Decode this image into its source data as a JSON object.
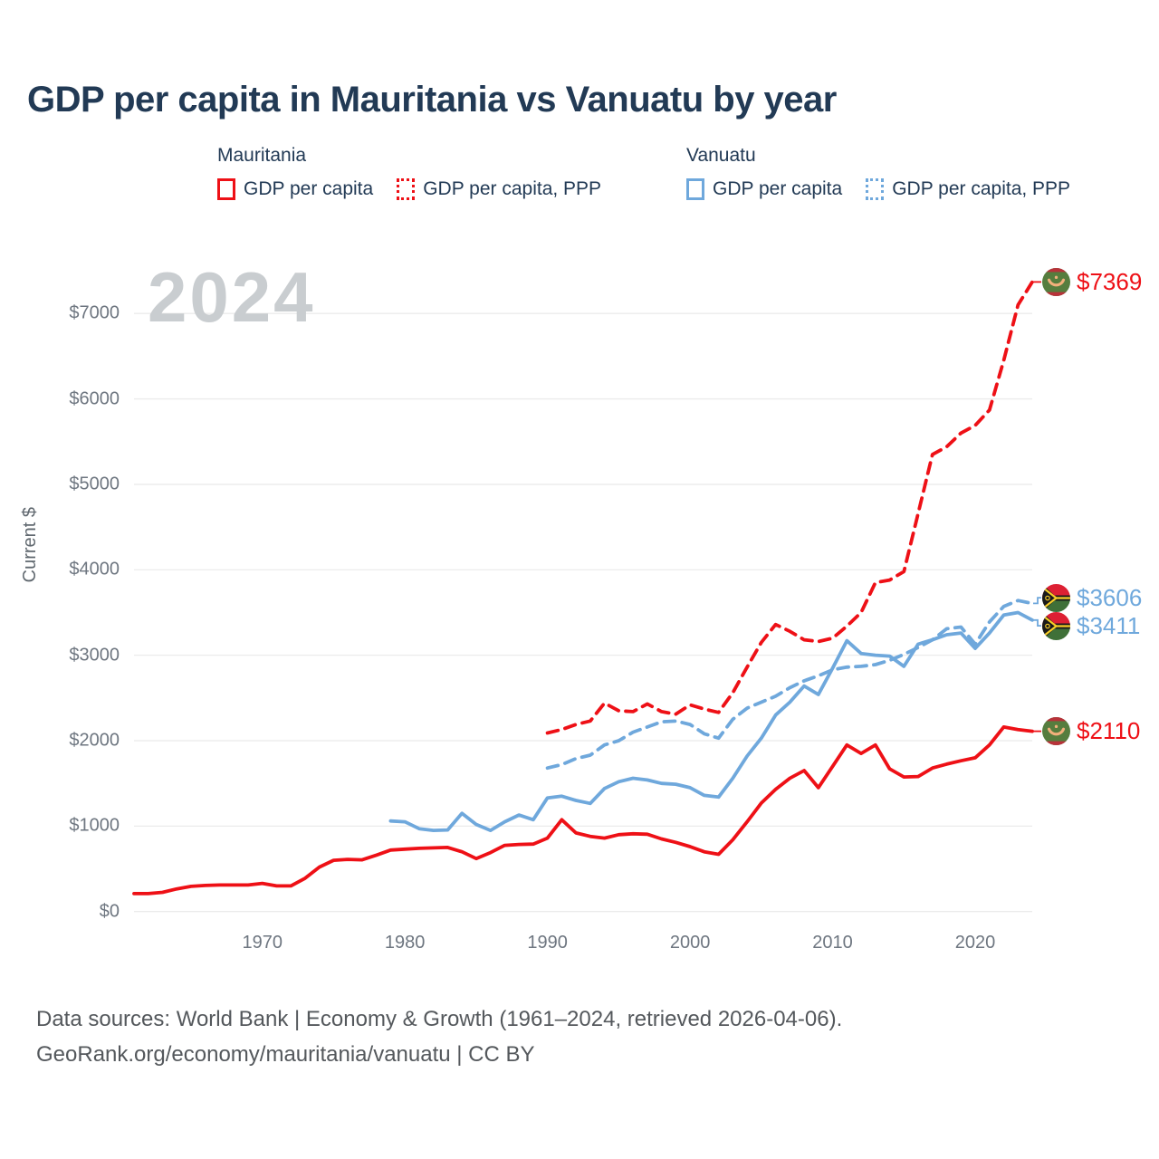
{
  "title": "GDP per capita in Mauritania vs Vanuatu by year",
  "watermark": "2024",
  "y_axis_title": "Current $",
  "footer": {
    "line1": "Data sources: World Bank | Economy & Growth (1961–2024, retrieved 2026-04-06).",
    "line2": "GeoRank.org/economy/mauritania/vanuatu | CC BY"
  },
  "palette": {
    "red": "#ee1016",
    "blue": "#6fa8dc",
    "navy": "#223a55",
    "grid": "#ebebeb",
    "tick_text": "#6e7680",
    "watermark": "#c9cdd0"
  },
  "legend": {
    "groups": [
      {
        "country": "Mauritania",
        "items": [
          {
            "label": "GDP per capita",
            "style": "solid",
            "color": "red"
          },
          {
            "label": "GDP per capita, PPP",
            "style": "dotted",
            "color": "red"
          }
        ]
      },
      {
        "country": "Vanuatu",
        "items": [
          {
            "label": "GDP per capita",
            "style": "solid",
            "color": "blue"
          },
          {
            "label": "GDP per capita, PPP",
            "style": "dotted",
            "color": "blue"
          }
        ]
      }
    ]
  },
  "chart_data": {
    "type": "line",
    "title": "GDP per capita in Mauritania vs Vanuatu by year",
    "xlabel": "",
    "ylabel": "Current $",
    "x_axis": {
      "range": [
        1961,
        2024
      ],
      "label_ticks": [
        1970,
        1980,
        1990,
        2000,
        2010,
        2020
      ]
    },
    "y_axis": {
      "range": [
        0,
        7500
      ],
      "ticks": [
        0,
        1000,
        2000,
        3000,
        4000,
        5000,
        6000,
        7000
      ],
      "tick_prefix": "$"
    },
    "grid": "horizontal",
    "legend_position": "top",
    "series": [
      {
        "name": "Mauritania GDP per capita",
        "country": "Mauritania",
        "color": "red",
        "dash": false,
        "flag": "mauritania",
        "start_year": 1961,
        "end_year": 2024,
        "end_label": "$2110",
        "values": [
          210,
          210,
          225,
          265,
          295,
          305,
          310,
          310,
          310,
          330,
          300,
          300,
          390,
          520,
          600,
          610,
          605,
          660,
          720,
          730,
          740,
          745,
          750,
          700,
          620,
          690,
          775,
          785,
          790,
          860,
          1075,
          920,
          880,
          860,
          900,
          910,
          905,
          850,
          810,
          760,
          700,
          670,
          840,
          1050,
          1270,
          1430,
          1560,
          1650,
          1450,
          1700,
          1950,
          1850,
          1950,
          1670,
          1575,
          1580,
          1680,
          1725,
          1765,
          1800,
          1950,
          2160,
          2130,
          2110
        ]
      },
      {
        "name": "Mauritania GDP per capita, PPP",
        "country": "Mauritania",
        "color": "red",
        "dash": true,
        "flag": "mauritania",
        "start_year": 1990,
        "end_year": 2024,
        "end_label": "$7369",
        "values": [
          2090,
          2130,
          2190,
          2230,
          2440,
          2350,
          2340,
          2430,
          2340,
          2310,
          2420,
          2370,
          2330,
          2560,
          2860,
          3150,
          3360,
          3280,
          3180,
          3160,
          3200,
          3340,
          3500,
          3850,
          3880,
          3980,
          4660,
          5350,
          5440,
          5600,
          5690,
          5870,
          6450,
          7100,
          7369
        ]
      },
      {
        "name": "Vanuatu GDP per capita",
        "country": "Vanuatu",
        "color": "blue",
        "dash": false,
        "flag": "vanuatu",
        "start_year": 1979,
        "end_year": 2024,
        "end_label": "$3411",
        "values": [
          1060,
          1050,
          970,
          950,
          955,
          1150,
          1020,
          950,
          1050,
          1130,
          1075,
          1330,
          1350,
          1300,
          1265,
          1440,
          1520,
          1560,
          1540,
          1500,
          1490,
          1450,
          1360,
          1340,
          1560,
          1820,
          2030,
          2300,
          2450,
          2640,
          2540,
          2850,
          3170,
          3020,
          3000,
          2990,
          2870,
          3130,
          3180,
          3240,
          3260,
          3080,
          3260,
          3470,
          3500,
          3411
        ]
      },
      {
        "name": "Vanuatu GDP per capita, PPP",
        "country": "Vanuatu",
        "color": "blue",
        "dash": true,
        "flag": "vanuatu",
        "start_year": 1990,
        "end_year": 2024,
        "end_label": "$3606",
        "values": [
          1680,
          1720,
          1790,
          1830,
          1950,
          2000,
          2100,
          2160,
          2220,
          2230,
          2190,
          2080,
          2030,
          2250,
          2380,
          2450,
          2520,
          2620,
          2700,
          2760,
          2830,
          2860,
          2870,
          2890,
          2940,
          3010,
          3090,
          3180,
          3310,
          3330,
          3130,
          3390,
          3570,
          3640,
          3606
        ]
      }
    ]
  }
}
